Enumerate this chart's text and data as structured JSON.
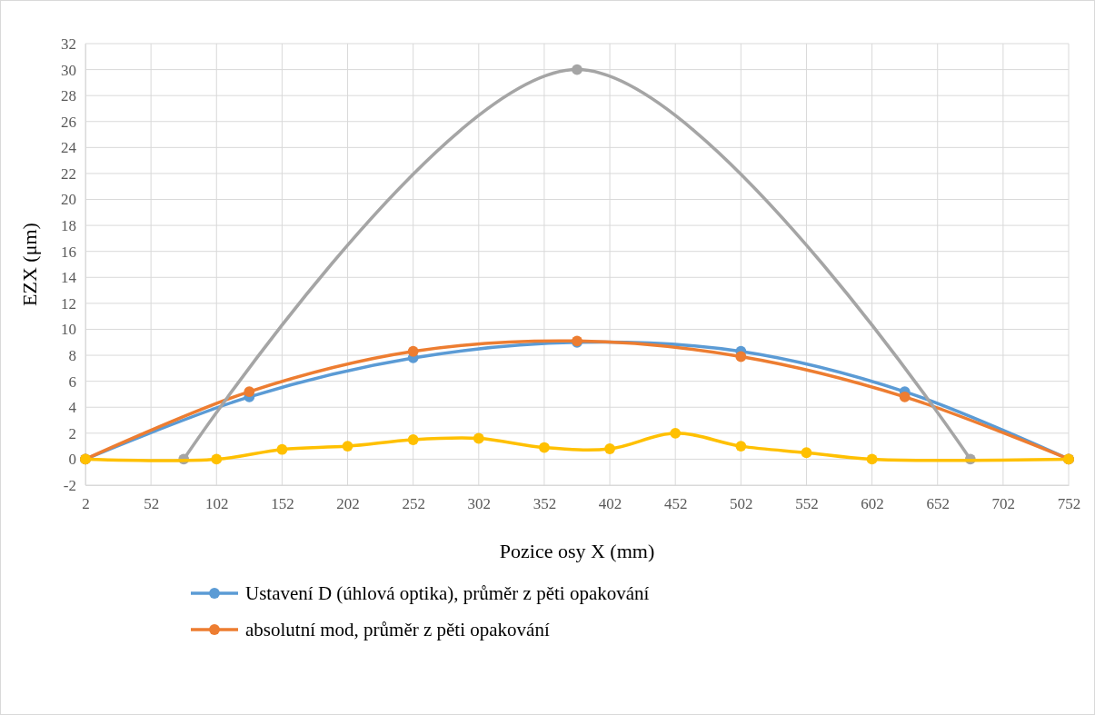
{
  "chart_data": {
    "type": "line",
    "xlabel": "Pozice osy X (mm)",
    "ylabel": "EZX (μm)",
    "xlim": [
      2,
      752
    ],
    "xticks": [
      2,
      52,
      102,
      152,
      202,
      252,
      302,
      352,
      402,
      452,
      502,
      552,
      602,
      652,
      702,
      752
    ],
    "ylim": [
      -2,
      32
    ],
    "yticks": [
      -2,
      0,
      2,
      4,
      6,
      8,
      10,
      12,
      14,
      16,
      18,
      20,
      22,
      24,
      26,
      28,
      30,
      32
    ],
    "grid": true,
    "legend": "bottom",
    "marker": "circle",
    "line_style": "solid",
    "series": [
      {
        "name": "Ustavení D (úhlová optika), průměr z pěti opakování",
        "color": "#5b9bd5",
        "x": [
          2,
          127,
          252,
          377,
          502,
          627,
          752
        ],
        "values": [
          0,
          4.8,
          7.8,
          9.0,
          8.3,
          5.2,
          0
        ]
      },
      {
        "name": "absolutní mod, průměr z pěti opakování",
        "color": "#ed7d31",
        "x": [
          2,
          127,
          252,
          377,
          502,
          627,
          752
        ],
        "values": [
          0,
          5.2,
          8.3,
          9.1,
          7.9,
          4.8,
          0
        ]
      },
      {
        "color": "#a5a5a5",
        "x": [
          77,
          377,
          677
        ],
        "values": [
          0,
          30,
          0
        ]
      },
      {
        "color": "#ffc000",
        "x": [
          2,
          102,
          152,
          202,
          252,
          302,
          352,
          402,
          452,
          502,
          552,
          602,
          752
        ],
        "values": [
          0,
          0,
          0.75,
          1.0,
          1.5,
          1.6,
          0.9,
          0.8,
          2.0,
          1.0,
          0.5,
          0,
          0
        ]
      }
    ]
  }
}
